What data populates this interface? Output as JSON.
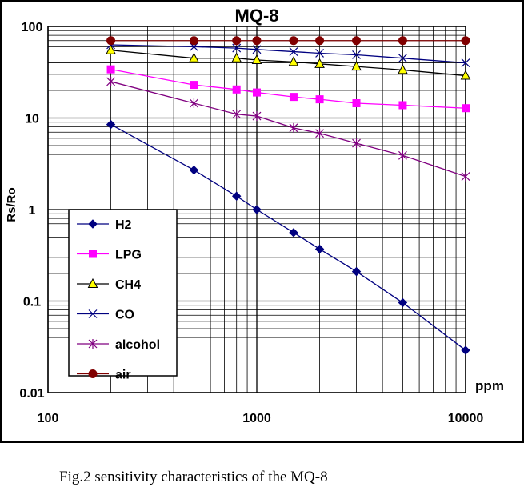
{
  "chart_data": {
    "type": "line",
    "title": "MQ-8",
    "xlabel": "ppm",
    "ylabel": "Rs/Ro",
    "xscale": "log",
    "yscale": "log",
    "xlim": [
      100,
      10000
    ],
    "ylim": [
      0.01,
      100
    ],
    "x_tick_labels": [
      "100",
      "1000",
      "10000"
    ],
    "y_tick_labels": [
      "100",
      "10",
      "1",
      "0.1",
      "0.01"
    ],
    "grid": true,
    "legend_position": "left",
    "x": [
      200,
      500,
      800,
      1000,
      1500,
      2000,
      3000,
      5000,
      10000
    ],
    "series": [
      {
        "name": "H2",
        "color": "#000080",
        "marker": "diamond",
        "values": [
          8.5,
          2.7,
          1.4,
          1.0,
          0.56,
          0.37,
          0.21,
          0.096,
          0.029
        ]
      },
      {
        "name": "LPG",
        "color": "#ff00ff",
        "marker": "square",
        "values": [
          34,
          23,
          20.5,
          19,
          17,
          16,
          14.5,
          13.8,
          12.8
        ]
      },
      {
        "name": "CH4",
        "color": "#000000",
        "marker": "triangle",
        "marker_fill": "#ffff00",
        "values": [
          55,
          45,
          45,
          43,
          41,
          39,
          36.5,
          33.5,
          29
        ]
      },
      {
        "name": "CO",
        "color": "#000080",
        "marker": "x",
        "values": [
          63,
          60,
          58,
          56,
          53,
          51,
          49,
          45,
          40
        ]
      },
      {
        "name": "alcohol",
        "color": "#800080",
        "marker": "star",
        "values": [
          25,
          14.5,
          11,
          10.5,
          7.8,
          6.8,
          5.3,
          3.9,
          2.3
        ]
      },
      {
        "name": "air",
        "color": "#800000",
        "marker": "circle",
        "values": [
          70,
          70,
          70,
          70,
          70,
          70,
          70,
          70,
          70
        ]
      }
    ]
  },
  "caption": "Fig.2 sensitivity characteristics of the MQ-8"
}
